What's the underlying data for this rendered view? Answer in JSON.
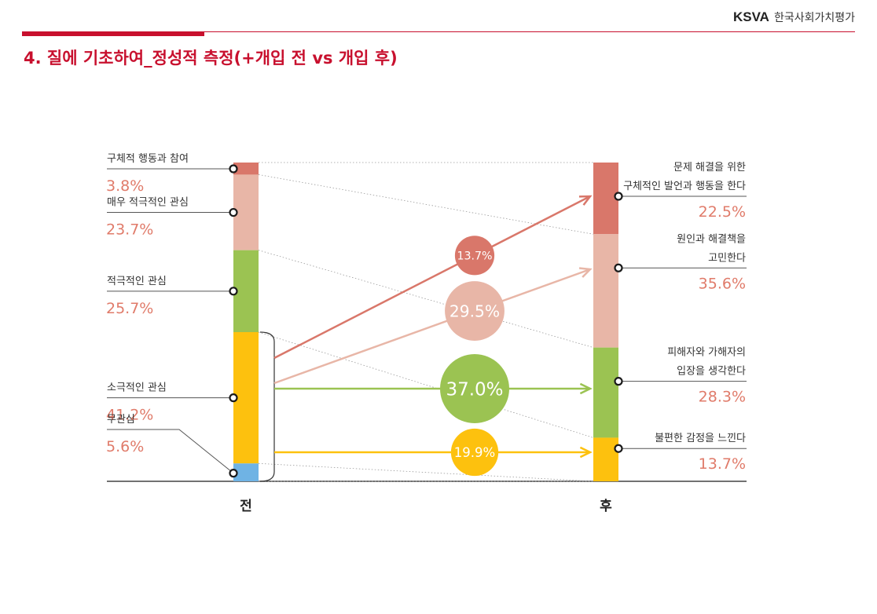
{
  "header": {
    "brand": "KSVA",
    "org": "한국사회가치평가"
  },
  "page": {
    "title": "4. 질에 기초하여_정성적 측정(+개입 전 vs 개입 후)"
  },
  "colors": {
    "accent": "#c8102e",
    "value_text": "#e07b6a"
  },
  "chart_data": {
    "type": "bar",
    "subtype": "stacked-100-comparison",
    "categories": [
      "전",
      "후"
    ],
    "before": {
      "label": "전",
      "segments": [
        {
          "label": "구체적 행동과 참여",
          "display": "3.8%",
          "value": 3.8,
          "color": "#d9776a"
        },
        {
          "label": "매우 적극적인 관심",
          "display": "23.7%",
          "value": 23.7,
          "color": "#e8b6a7"
        },
        {
          "label": "적극적인 관심",
          "display": "25.7%",
          "value": 25.7,
          "color": "#9bc352"
        },
        {
          "label": "소극적인 관심",
          "display": "41.2%",
          "value": 41.2,
          "color": "#fdc10e"
        },
        {
          "label": "무관심",
          "display": "5.6%",
          "value": 5.6,
          "color": "#6fb3e4"
        }
      ]
    },
    "after": {
      "label": "후",
      "segments": [
        {
          "label_lines": [
            "문제 해결을 위한",
            "구체적인 발언과 행동을 한다"
          ],
          "display": "22.5%",
          "value": 22.5,
          "color": "#d9776a"
        },
        {
          "label_lines": [
            "원인과 해결책을",
            "고민한다"
          ],
          "display": "35.6%",
          "value": 35.6,
          "color": "#e8b6a7"
        },
        {
          "label_lines": [
            "피해자와 가해자의",
            "입장을 생각한다"
          ],
          "display": "28.3%",
          "value": 28.3,
          "color": "#9bc352"
        },
        {
          "label_lines": [
            "불편한 감정을 느낀다"
          ],
          "display": "13.7%",
          "value": 13.7,
          "color": "#fdc10e"
        }
      ]
    },
    "transitions": [
      {
        "from": "소극적인 관심",
        "to_index": 0,
        "display": "13.7%",
        "value": 13.7,
        "color": "#d9776a"
      },
      {
        "from": "소극적인 관심",
        "to_index": 1,
        "display": "29.5%",
        "value": 29.5,
        "color": "#e8b6a7"
      },
      {
        "from": "소극적인 관심",
        "to_index": 2,
        "display": "37.0%",
        "value": 37.0,
        "color": "#9bc352"
      },
      {
        "from": "소극적인 관심",
        "to_index": 3,
        "display": "19.9%",
        "value": 19.9,
        "color": "#fdc10e"
      }
    ]
  }
}
